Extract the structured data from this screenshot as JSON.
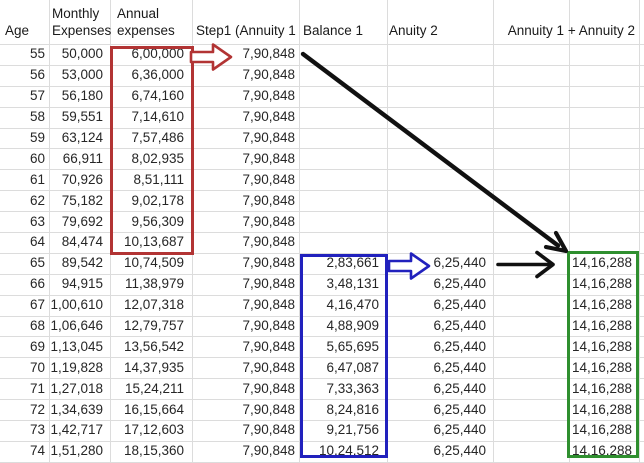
{
  "table": {
    "headers": {
      "age": "Age",
      "monthly": "Monthly\nExpenses",
      "annual": "Annual\nexpenses",
      "annuity1": "Step1 (Annuity 1",
      "balance1": "Balance 1",
      "anuity2": "Anuity 2",
      "total": "Annuity 1 + Annuity 2"
    },
    "rows": [
      {
        "age": "55",
        "monthly": "50,000",
        "annual": "6,00,000",
        "annuity1": "7,90,848",
        "balance1": "",
        "anuity2": "",
        "total": ""
      },
      {
        "age": "56",
        "monthly": "53,000",
        "annual": "6,36,000",
        "annuity1": "7,90,848",
        "balance1": "",
        "anuity2": "",
        "total": ""
      },
      {
        "age": "57",
        "monthly": "56,180",
        "annual": "6,74,160",
        "annuity1": "7,90,848",
        "balance1": "",
        "anuity2": "",
        "total": ""
      },
      {
        "age": "58",
        "monthly": "59,551",
        "annual": "7,14,610",
        "annuity1": "7,90,848",
        "balance1": "",
        "anuity2": "",
        "total": ""
      },
      {
        "age": "59",
        "monthly": "63,124",
        "annual": "7,57,486",
        "annuity1": "7,90,848",
        "balance1": "",
        "anuity2": "",
        "total": ""
      },
      {
        "age": "60",
        "monthly": "66,911",
        "annual": "8,02,935",
        "annuity1": "7,90,848",
        "balance1": "",
        "anuity2": "",
        "total": ""
      },
      {
        "age": "61",
        "monthly": "70,926",
        "annual": "8,51,111",
        "annuity1": "7,90,848",
        "balance1": "",
        "anuity2": "",
        "total": ""
      },
      {
        "age": "62",
        "monthly": "75,182",
        "annual": "9,02,178",
        "annuity1": "7,90,848",
        "balance1": "",
        "anuity2": "",
        "total": ""
      },
      {
        "age": "63",
        "monthly": "79,692",
        "annual": "9,56,309",
        "annuity1": "7,90,848",
        "balance1": "",
        "anuity2": "",
        "total": ""
      },
      {
        "age": "64",
        "monthly": "84,474",
        "annual": "10,13,687",
        "annuity1": "7,90,848",
        "balance1": "",
        "anuity2": "",
        "total": ""
      },
      {
        "age": "65",
        "monthly": "89,542",
        "annual": "10,74,509",
        "annuity1": "7,90,848",
        "balance1": "2,83,661",
        "anuity2": "6,25,440",
        "total": "14,16,288"
      },
      {
        "age": "66",
        "monthly": "94,915",
        "annual": "11,38,979",
        "annuity1": "7,90,848",
        "balance1": "3,48,131",
        "anuity2": "6,25,440",
        "total": "14,16,288"
      },
      {
        "age": "67",
        "monthly": "1,00,610",
        "annual": "12,07,318",
        "annuity1": "7,90,848",
        "balance1": "4,16,470",
        "anuity2": "6,25,440",
        "total": "14,16,288"
      },
      {
        "age": "68",
        "monthly": "1,06,646",
        "annual": "12,79,757",
        "annuity1": "7,90,848",
        "balance1": "4,88,909",
        "anuity2": "6,25,440",
        "total": "14,16,288"
      },
      {
        "age": "69",
        "monthly": "1,13,045",
        "annual": "13,56,542",
        "annuity1": "7,90,848",
        "balance1": "5,65,695",
        "anuity2": "6,25,440",
        "total": "14,16,288"
      },
      {
        "age": "70",
        "monthly": "1,19,828",
        "annual": "14,37,935",
        "annuity1": "7,90,848",
        "balance1": "6,47,087",
        "anuity2": "6,25,440",
        "total": "14,16,288"
      },
      {
        "age": "71",
        "monthly": "1,27,018",
        "annual": "15,24,211",
        "annuity1": "7,90,848",
        "balance1": "7,33,363",
        "anuity2": "6,25,440",
        "total": "14,16,288"
      },
      {
        "age": "72",
        "monthly": "1,34,639",
        "annual": "16,15,664",
        "annuity1": "7,90,848",
        "balance1": "8,24,816",
        "anuity2": "6,25,440",
        "total": "14,16,288"
      },
      {
        "age": "73",
        "monthly": "1,42,717",
        "annual": "17,12,603",
        "annuity1": "7,90,848",
        "balance1": "9,21,756",
        "anuity2": "6,25,440",
        "total": "14,16,288"
      },
      {
        "age": "74",
        "monthly": "1,51,280",
        "annual": "18,15,360",
        "annuity1": "7,90,848",
        "balance1": "10,24,512",
        "anuity2": "6,25,440",
        "total": "14,16,288"
      }
    ]
  },
  "annotations": {
    "red_box_color": "#b23434",
    "blue_box_color": "#2121bd",
    "green_box_color": "#2f8f2f",
    "arrow_color": "#111111",
    "gridline_color": "#dcdcdc"
  }
}
